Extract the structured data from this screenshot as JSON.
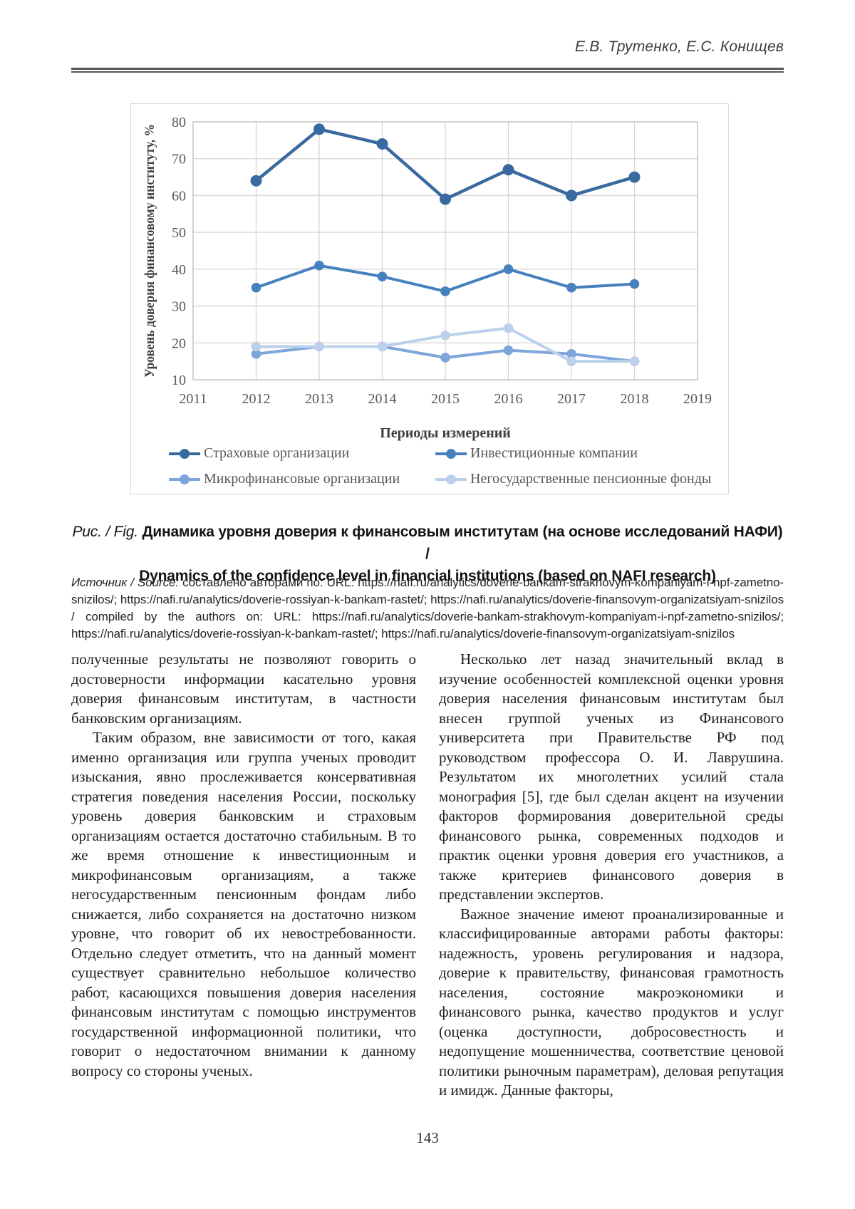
{
  "page": {
    "number": "143"
  },
  "header": {
    "authors": "Е.В. Трутенко, Е.С. Конищев"
  },
  "figure": {
    "caption_prefix": "Рис. / Fig.",
    "caption_ru": "Динамика уровня доверия к финансовым институтам (на основе исследований НАФИ) /",
    "caption_en": "Dynamics of the confidence level in financial institutions (based on NAFI research)",
    "source_label": "Источник / Source:",
    "source_text": "составлено авторами по: URL: https://nafi.ru/analytics/doverie-bankam-strakhovym-kompaniyam-i-npf-zametno-snizilos/; https://nafi.ru/analytics/doverie-rossiyan-k-bankam-rastet/; https://nafi.ru/analytics/doverie-finansovym-organizatsiyam-snizilos / compiled by the authors on: URL: https://nafi.ru/analytics/doverie-bankam-strakhovym-kompaniyam-i-npf-zametno-snizilos/; https://nafi.ru/analytics/doverie-rossiyan-k-bankam-rastet/; https://nafi.ru/analytics/doverie-finansovym-organizatsiyam-snizilos"
  },
  "chart_data": {
    "type": "line",
    "x": [
      2012,
      2013,
      2014,
      2015,
      2016,
      2017,
      2018
    ],
    "x_axis_ticks": [
      2011,
      2012,
      2013,
      2014,
      2015,
      2016,
      2017,
      2018,
      2019
    ],
    "xlabel": "Периоды измерений",
    "ylabel": "Уровень доверия финансовому институту, %",
    "ylim": [
      10,
      80
    ],
    "y_tick_step": 10,
    "grid": true,
    "grid_color": "#d6d6d6",
    "axis_border_color": "#c0c0c0",
    "legend_position": "bottom",
    "series": [
      {
        "name": "Страховые организации",
        "color": "#38699F",
        "values": [
          64,
          78,
          74,
          59,
          67,
          60,
          65
        ]
      },
      {
        "name": "Инвестиционные компании",
        "color": "#4680BE",
        "values": [
          35,
          41,
          38,
          34,
          40,
          35,
          36
        ]
      },
      {
        "name": "Микрофинансовые организации",
        "color": "#7CA5DA",
        "values": [
          17,
          19,
          19,
          16,
          18,
          17,
          15
        ]
      },
      {
        "name": "Негосударственные пенсионные фонды",
        "color": "#BDD0EB",
        "values": [
          19,
          19,
          19,
          22,
          24,
          15,
          15
        ]
      }
    ]
  },
  "body": {
    "left": [
      {
        "text": "полученные результаты не позволяют говорить о достоверности информации касательно уровня доверия финансовым институтам, в частности банковским организациям."
      },
      {
        "text": "Таким образом, вне зависимости от того, какая именно организация или группа ученых проводит изыскания, явно прослеживается консервативная стратегия поведения населения России, поскольку уровень доверия банковским и страховым организациям остается достаточно стабильным. В то же время отношение к инвестиционным и микрофинансовым организациям, а также негосударственным пенсионным фондам либо снижается, либо сохраняется на достаточно низком уровне, что говорит об их невостребованности. Отдельно следует отметить, что на данный момент существует сравнительно небольшое количество работ, касающихся повышения доверия населения финансовым институтам с помощью инструментов государственной информационной политики, что говорит о недостаточном внимании к данному вопросу со стороны ученых."
      }
    ],
    "right": [
      {
        "text": "Несколько лет назад значительный вклад в изучение особенностей комплексной оценки уровня доверия населения финансовым институтам был внесен группой ученых из Финансового университета при Правительстве РФ под руководством профессора О. И. Лаврушина. Результатом их многолетних усилий стала монография [5], где был сделан акцент на изучении факторов формирования доверительной среды финансового рынка, современных подходов и практик оценки уровня доверия его участников, а также критериев финансового доверия в представлении экспертов."
      },
      {
        "text": "Важное значение имеют проанализированные и классифицированные авторами работы факторы: надежность, уровень регулирования и надзора, доверие к правительству, финансовая грамотность населения, состояние макроэкономики и финансового рынка, качество продуктов и услуг (оценка доступности, добросовестность и недопущение мошенничества, соответствие ценовой политики рыночным параметрам), деловая репутация и имидж. Данные факторы,"
      }
    ]
  }
}
